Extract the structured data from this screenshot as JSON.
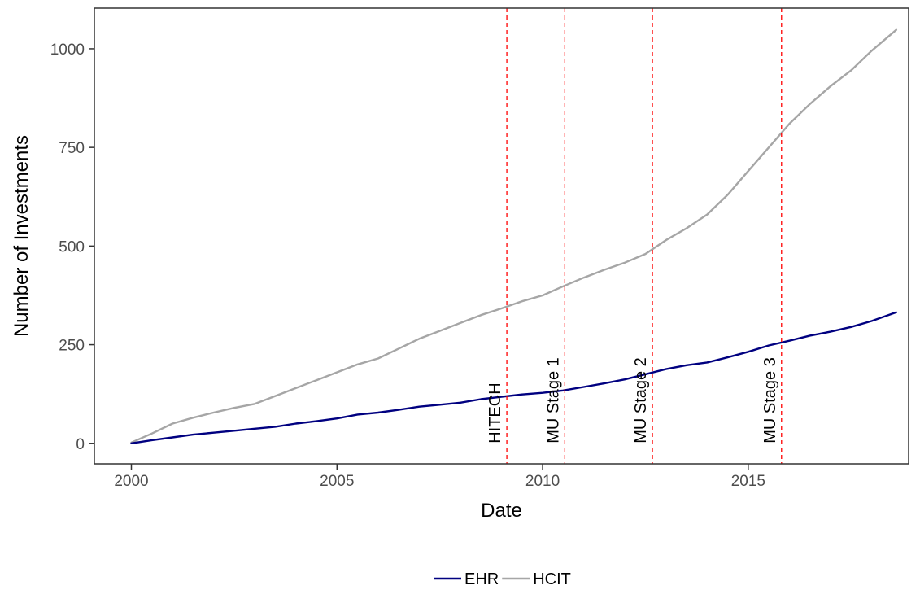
{
  "chart_data": {
    "type": "line",
    "xlabel": "Date",
    "ylabel": "Number of Investments",
    "xlim": [
      1999.1,
      2018.9
    ],
    "ylim": [
      -52,
      1103
    ],
    "x_ticks": [
      2000,
      2005,
      2010,
      2015
    ],
    "x_tick_labels": [
      "2000",
      "2005",
      "2010",
      "2015"
    ],
    "y_ticks": [
      0,
      250,
      500,
      750,
      1000
    ],
    "y_tick_labels": [
      "0",
      "250",
      "500",
      "750",
      "1000"
    ],
    "grid": false,
    "legend_position": "bottom",
    "series": [
      {
        "name": "EHR",
        "color": "#000080",
        "points": [
          [
            2000.0,
            0
          ],
          [
            2000.5,
            8
          ],
          [
            2001.0,
            15
          ],
          [
            2001.5,
            22
          ],
          [
            2002.0,
            27
          ],
          [
            2002.5,
            32
          ],
          [
            2003.0,
            37
          ],
          [
            2003.5,
            42
          ],
          [
            2004.0,
            50
          ],
          [
            2004.5,
            56
          ],
          [
            2005.0,
            63
          ],
          [
            2005.5,
            73
          ],
          [
            2006.0,
            78
          ],
          [
            2006.5,
            85
          ],
          [
            2007.0,
            93
          ],
          [
            2007.5,
            98
          ],
          [
            2008.0,
            103
          ],
          [
            2008.5,
            112
          ],
          [
            2009.0,
            118
          ],
          [
            2009.5,
            124
          ],
          [
            2010.0,
            128
          ],
          [
            2010.5,
            134
          ],
          [
            2011.0,
            143
          ],
          [
            2011.5,
            152
          ],
          [
            2012.0,
            162
          ],
          [
            2012.5,
            175
          ],
          [
            2013.0,
            188
          ],
          [
            2013.5,
            198
          ],
          [
            2014.0,
            205
          ],
          [
            2014.5,
            218
          ],
          [
            2015.0,
            232
          ],
          [
            2015.5,
            248
          ],
          [
            2016.0,
            260
          ],
          [
            2016.5,
            273
          ],
          [
            2017.0,
            283
          ],
          [
            2017.5,
            295
          ],
          [
            2018.0,
            310
          ],
          [
            2018.6,
            332
          ]
        ]
      },
      {
        "name": "HCIT",
        "color": "#a6a6a6",
        "points": [
          [
            2000.0,
            2
          ],
          [
            2000.5,
            25
          ],
          [
            2001.0,
            50
          ],
          [
            2001.5,
            65
          ],
          [
            2002.0,
            78
          ],
          [
            2002.5,
            90
          ],
          [
            2003.0,
            100
          ],
          [
            2003.5,
            120
          ],
          [
            2004.0,
            140
          ],
          [
            2004.5,
            160
          ],
          [
            2005.0,
            180
          ],
          [
            2005.5,
            200
          ],
          [
            2006.0,
            215
          ],
          [
            2006.5,
            240
          ],
          [
            2007.0,
            265
          ],
          [
            2007.5,
            285
          ],
          [
            2008.0,
            305
          ],
          [
            2008.5,
            325
          ],
          [
            2009.0,
            342
          ],
          [
            2009.5,
            360
          ],
          [
            2010.0,
            375
          ],
          [
            2010.5,
            398
          ],
          [
            2011.0,
            420
          ],
          [
            2011.5,
            440
          ],
          [
            2012.0,
            458
          ],
          [
            2012.5,
            480
          ],
          [
            2013.0,
            515
          ],
          [
            2013.5,
            545
          ],
          [
            2014.0,
            580
          ],
          [
            2014.5,
            630
          ],
          [
            2015.0,
            690
          ],
          [
            2015.5,
            750
          ],
          [
            2016.0,
            810
          ],
          [
            2016.5,
            860
          ],
          [
            2017.0,
            905
          ],
          [
            2017.5,
            945
          ],
          [
            2018.0,
            995
          ],
          [
            2018.6,
            1048
          ]
        ]
      }
    ],
    "events": [
      {
        "label": "HITECH",
        "x": 2009.13
      },
      {
        "label": "MU Stage 1",
        "x": 2010.54
      },
      {
        "label": "MU Stage 2",
        "x": 2012.67
      },
      {
        "label": "MU Stage 3",
        "x": 2015.81
      }
    ],
    "event_line_color": "#ff0000"
  }
}
